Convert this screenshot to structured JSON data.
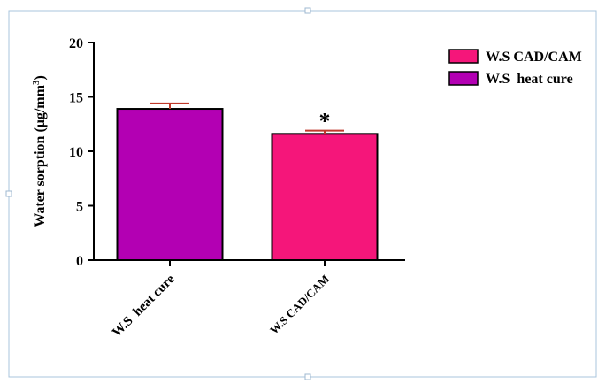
{
  "chart_data": {
    "type": "bar",
    "categories": [
      "W.S  heat cure",
      "W.S CAD/CAM"
    ],
    "values": [
      13.9,
      11.6
    ],
    "errors": [
      0.5,
      0.3
    ],
    "significance": [
      "",
      "*"
    ],
    "colors": [
      "#b300b3",
      "#f5167a"
    ],
    "ylabel_main": "Water sorption (μg/mm",
    "ylabel_sup": "3",
    "ylabel_close": ")",
    "ylim": [
      0,
      20
    ],
    "yticks": [
      "0",
      "5",
      "10",
      "15",
      "20"
    ],
    "grid": false,
    "legend_position": "top-right",
    "legend": [
      {
        "label": "W.S CAD/CAM",
        "color": "#f5167a"
      },
      {
        "label": "W.S  heat cure",
        "color": "#b300b3"
      }
    ]
  }
}
